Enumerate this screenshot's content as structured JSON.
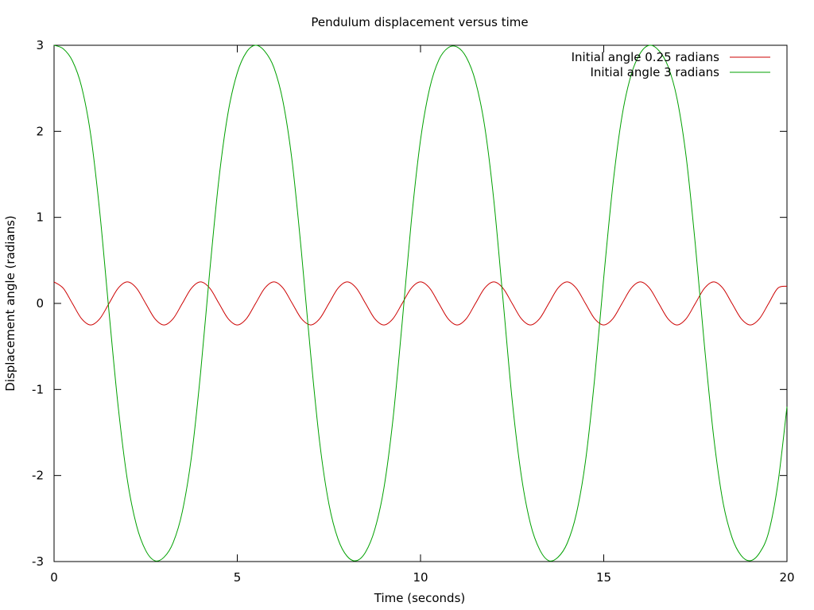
{
  "chart_data": {
    "type": "line",
    "title": "Pendulum displacement versus time",
    "xlabel": "Time (seconds)",
    "ylabel": "Displacement angle (radians)",
    "xlim": [
      0,
      20
    ],
    "ylim": [
      -3,
      3
    ],
    "x_ticks": [
      0,
      5,
      10,
      15,
      20
    ],
    "y_ticks": [
      -3,
      -2,
      -1,
      0,
      1,
      2,
      3
    ],
    "x_tick_labels": [
      "0",
      "5",
      "10",
      "15",
      "20"
    ],
    "y_tick_labels": [
      "-3",
      "-2",
      "-1",
      "0",
      "1",
      "2",
      "3"
    ],
    "grid": false,
    "legend_position": "top-right",
    "x": [
      0.0,
      0.25,
      0.5,
      0.75,
      1.0,
      1.25,
      1.5,
      1.75,
      2.0,
      2.25,
      2.5,
      2.75,
      3.0,
      3.25,
      3.5,
      3.75,
      4.0,
      4.25,
      4.5,
      4.75,
      5.0,
      5.25,
      5.5,
      5.75,
      6.0,
      6.25,
      6.5,
      6.75,
      7.0,
      7.25,
      7.5,
      7.75,
      8.0,
      8.25,
      8.5,
      8.75,
      9.0,
      9.25,
      9.5,
      9.75,
      10.0,
      10.25,
      10.5,
      10.75,
      11.0,
      11.25,
      11.5,
      11.75,
      12.0,
      12.25,
      12.5,
      12.75,
      13.0,
      13.25,
      13.5,
      13.75,
      14.0,
      14.25,
      14.5,
      14.75,
      15.0,
      15.25,
      15.5,
      15.75,
      16.0,
      16.25,
      16.5,
      16.75,
      17.0,
      17.25,
      17.5,
      17.75,
      18.0,
      18.25,
      18.5,
      18.75,
      19.0,
      19.25,
      19.5,
      19.75,
      20.0
    ],
    "series": [
      {
        "name": "Initial angle 0.25 radians",
        "color": "#cc0000",
        "values": [
          0.25,
          0.177,
          0.0,
          -0.177,
          -0.25,
          -0.177,
          0.0,
          0.177,
          0.25,
          0.177,
          0.0,
          -0.177,
          -0.25,
          -0.177,
          0.0,
          0.177,
          0.25,
          0.177,
          0.0,
          -0.177,
          -0.25,
          -0.177,
          0.0,
          0.177,
          0.25,
          0.177,
          0.0,
          -0.177,
          -0.25,
          -0.177,
          0.0,
          0.177,
          0.25,
          0.177,
          0.0,
          -0.177,
          -0.25,
          -0.177,
          0.0,
          0.177,
          0.25,
          0.177,
          0.0,
          -0.177,
          -0.25,
          -0.177,
          0.0,
          0.177,
          0.25,
          0.177,
          0.0,
          -0.177,
          -0.25,
          -0.177,
          0.0,
          0.177,
          0.25,
          0.177,
          0.0,
          -0.177,
          -0.25,
          -0.177,
          0.0,
          0.177,
          0.25,
          0.177,
          0.0,
          -0.177,
          -0.25,
          -0.177,
          0.0,
          0.177,
          0.25,
          0.177,
          0.0,
          -0.177,
          -0.25,
          -0.177,
          0.0,
          0.177,
          0.2
        ]
      },
      {
        "name": "Initial angle 3 radians",
        "color": "#00a000",
        "values": [
          3.0,
          2.96,
          2.82,
          2.52,
          1.96,
          1.05,
          -0.1,
          -1.2,
          -2.05,
          -2.58,
          -2.87,
          -2.99,
          -2.95,
          -2.78,
          -2.42,
          -1.78,
          -0.8,
          0.38,
          1.45,
          2.22,
          2.68,
          2.92,
          3.0,
          2.93,
          2.74,
          2.34,
          1.64,
          0.6,
          -0.58,
          -1.62,
          -2.33,
          -2.74,
          -2.94,
          -2.99,
          -2.89,
          -2.63,
          -2.15,
          -1.34,
          -0.22,
          0.96,
          1.9,
          2.5,
          2.83,
          2.97,
          2.98,
          2.86,
          2.58,
          2.06,
          1.2,
          0.05,
          -1.12,
          -2.0,
          -2.56,
          -2.86,
          -2.99,
          -2.95,
          -2.79,
          -2.45,
          -1.84,
          -0.88,
          0.3,
          1.38,
          2.18,
          2.66,
          2.91,
          3.0,
          2.94,
          2.76,
          2.38,
          1.7,
          0.68,
          -0.5,
          -1.55,
          -2.3,
          -2.72,
          -2.93,
          -2.99,
          -2.9,
          -2.66,
          -2.1,
          -1.2
        ]
      }
    ]
  }
}
